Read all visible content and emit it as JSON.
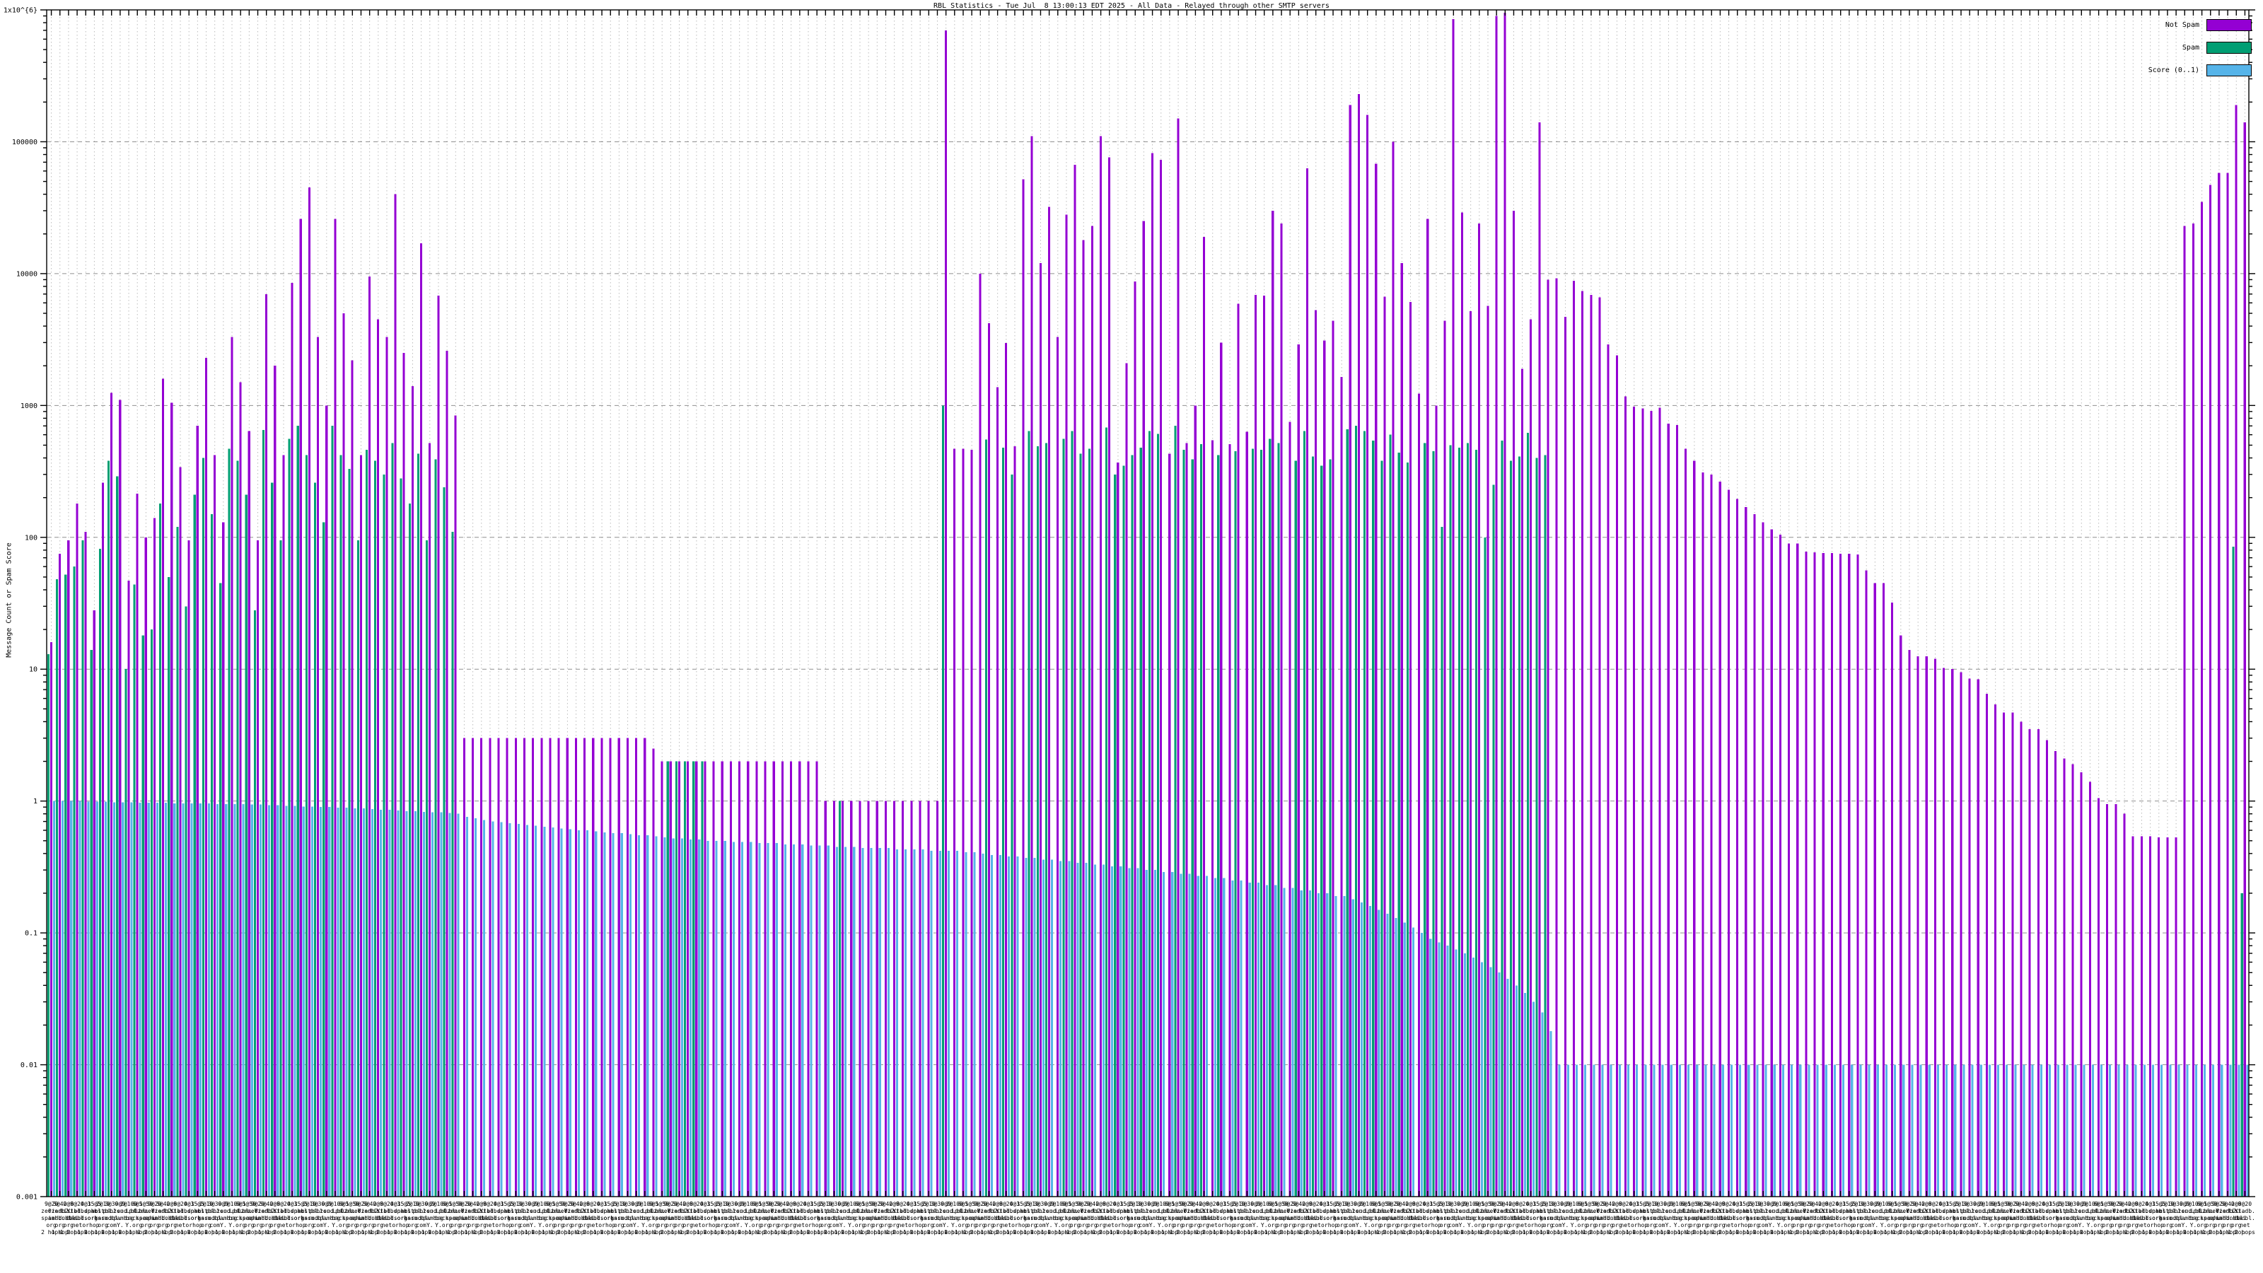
{
  "title": "RBL Statistics - Tue Jul  8 13:00:13 EDT 2025 - All Data - Relayed through other SMTP servers",
  "ylabel": "Message Count or Spam Score",
  "legend": [
    {
      "label": "Not Spam",
      "color": "#9400D3"
    },
    {
      "label": "Spam",
      "color": "#009E73"
    },
    {
      "label": "Score (0..1)",
      "color": "#56B4E9"
    }
  ],
  "colors": {
    "not_spam": "#9400D3",
    "spam": "#009E73",
    "score": "#56B4E9",
    "grid_major": "#909090",
    "grid_minor": "#bbbbbb",
    "axis": "#000000",
    "background": "#ffffff"
  },
  "y_ticks": [
    "1x10^{6}",
    "100000",
    "10000",
    "1000",
    "100",
    "10",
    "1",
    "0.1",
    "0.01",
    "0.001"
  ],
  "chart_data": {
    "type": "bar",
    "title": "RBL Statistics - Tue Jul  8 13:00:13 EDT 2025 - All Data - Relayed through other SMTP servers",
    "xlabel": "",
    "ylabel": "Message Count or Spam Score",
    "y_scale": "log",
    "ylim": [
      0.001,
      1000000
    ],
    "grid": true,
    "legend_position": "top-right",
    "series_names": [
      "Not Spam",
      "Spam",
      "Score (0..1)"
    ],
    "segments": [
      {
        "name": "left-mixed-small",
        "not_spam": [
          16,
          75,
          95,
          180,
          110,
          28,
          260,
          1250,
          1100,
          47,
          215,
          100,
          140,
          1600,
          1050,
          340,
          95,
          700,
          2300,
          420,
          130,
          3300,
          1500
        ],
        "spam": [
          13,
          48,
          52,
          60,
          95,
          14,
          82,
          380,
          290,
          10,
          44,
          18,
          20,
          180,
          50,
          120,
          30,
          210,
          400,
          150,
          45,
          470,
          380
        ],
        "score": [
          1.0,
          1.0,
          1.0,
          1.0,
          0.99,
          0.99,
          0.99,
          0.98,
          0.98,
          0.98,
          0.97,
          0.97,
          0.97,
          0.97,
          0.96,
          0.96,
          0.96,
          0.96,
          0.96,
          0.95,
          0.95,
          0.95,
          0.95
        ]
      },
      {
        "name": "left-mixed-large",
        "not_spam": [
          640,
          95,
          7000,
          2000,
          420,
          8500,
          26000,
          45000,
          3300,
          1000,
          26000,
          5000,
          2200,
          420,
          9500,
          4500,
          3300,
          40000,
          2500,
          1400,
          17000,
          520,
          6800,
          2600,
          840
        ],
        "spam": [
          210,
          28,
          650,
          260,
          95,
          560,
          700,
          420,
          260,
          130,
          700,
          420,
          330,
          95,
          460,
          380,
          300,
          520,
          280,
          180,
          430,
          95,
          390,
          240,
          110
        ],
        "score": [
          0.94,
          0.94,
          0.93,
          0.93,
          0.92,
          0.92,
          0.91,
          0.91,
          0.9,
          0.9,
          0.89,
          0.89,
          0.88,
          0.88,
          0.87,
          0.86,
          0.86,
          0.85,
          0.84,
          0.84,
          0.83,
          0.82,
          0.82,
          0.81,
          0.8
        ]
      },
      {
        "name": "plateau-3",
        "not_spam": [
          3,
          3,
          3,
          3,
          3,
          3,
          3,
          3,
          3,
          3,
          3,
          3,
          3,
          3,
          3,
          3,
          3,
          3,
          3,
          3,
          3,
          3,
          2.5
        ],
        "spam": {
          "v": 0,
          "n": 23
        },
        "score": [
          0.76,
          0.74,
          0.72,
          0.7,
          0.69,
          0.68,
          0.67,
          0.66,
          0.65,
          0.64,
          0.63,
          0.62,
          0.61,
          0.6,
          0.6,
          0.59,
          0.58,
          0.57,
          0.57,
          0.56,
          0.55,
          0.55,
          0.54
        ]
      },
      {
        "name": "plateau-2-with-green-patch",
        "not_spam": {
          "v": 2,
          "n": 19
        },
        "spam": [
          0,
          2,
          2,
          2,
          2,
          2,
          0,
          0,
          0,
          0,
          0,
          0,
          0,
          0,
          0,
          0,
          0,
          0,
          0
        ],
        "score": [
          0.53,
          0.52,
          0.52,
          0.51,
          0.51,
          0.5,
          0.5,
          0.5,
          0.49,
          0.49,
          0.49,
          0.48,
          0.48,
          0.48,
          0.47,
          0.47,
          0.47,
          0.46,
          0.46
        ]
      },
      {
        "name": "plateau-1",
        "not_spam": {
          "v": 1,
          "n": 14
        },
        "spam": [
          0,
          0,
          1,
          0,
          0,
          0,
          0,
          0,
          0,
          0,
          0,
          0,
          0,
          0
        ],
        "score": [
          0.46,
          0.45,
          0.45,
          0.45,
          0.44,
          0.44,
          0.44,
          0.44,
          0.43,
          0.43,
          0.43,
          0.43,
          0.42,
          0.42
        ]
      },
      {
        "name": "big-spike",
        "not_spam": [
          700000,
          470,
          470,
          460
        ],
        "spam": [
          1000,
          0,
          0,
          0
        ],
        "score": [
          0.42,
          0.42,
          0.41,
          0.41
        ]
      },
      {
        "name": "middle-busy",
        "not_spam": [
          10000,
          4200,
          1380,
          2970,
          490,
          52000,
          110000,
          12000,
          32000,
          3300,
          28000,
          67000,
          18000,
          23000,
          110000,
          76000,
          370,
          2100,
          8700,
          25000,
          82000,
          73000,
          430,
          150000,
          520,
          1000,
          19000,
          545,
          3000,
          510,
          5900,
          630,
          6900,
          6800,
          30000,
          24000,
          750,
          2900,
          63000,
          5300,
          3100,
          4400,
          1650,
          190000,
          230000,
          160000,
          68000,
          6700,
          100000,
          12000,
          6100,
          1230,
          26000
        ],
        "spam": [
          0,
          550,
          0,
          480,
          300,
          0,
          640,
          490,
          520,
          0,
          560,
          640,
          430,
          470,
          0,
          680,
          300,
          350,
          420,
          480,
          640,
          610,
          0,
          700,
          460,
          390,
          510,
          0,
          420,
          0,
          450,
          0,
          470,
          460,
          560,
          520,
          0,
          380,
          640,
          410,
          350,
          390,
          0,
          660,
          700,
          640,
          540,
          380,
          600,
          440,
          370,
          0,
          520
        ],
        "score": [
          0.4,
          0.39,
          0.39,
          0.38,
          0.38,
          0.37,
          0.37,
          0.36,
          0.36,
          0.35,
          0.35,
          0.34,
          0.34,
          0.33,
          0.33,
          0.32,
          0.32,
          0.31,
          0.31,
          0.3,
          0.3,
          0.29,
          0.29,
          0.28,
          0.28,
          0.27,
          0.27,
          0.26,
          0.26,
          0.25,
          0.25,
          0.24,
          0.24,
          0.23,
          0.23,
          0.22,
          0.22,
          0.21,
          0.21,
          0.2,
          0.2,
          0.19,
          0.19,
          0.18,
          0.17,
          0.16,
          0.15,
          0.14,
          0.13,
          0.12,
          0.11,
          0.1,
          0.09
        ]
      },
      {
        "name": "tall-spikes-and-score-drop",
        "not_spam": [
          1000,
          4400,
          850000,
          29000,
          5200,
          24000,
          5700,
          900000,
          950000,
          30000,
          1900,
          4500,
          140000,
          9000,
          9200,
          4700,
          8800,
          7400,
          6900
        ],
        "spam": [
          450,
          120,
          500,
          480,
          520,
          460,
          100,
          250,
          540,
          380,
          410,
          620,
          400,
          420,
          0,
          0,
          0,
          0,
          0
        ],
        "score": [
          0.085,
          0.08,
          0.075,
          0.07,
          0.065,
          0.06,
          0.055,
          0.05,
          0.045,
          0.04,
          0.035,
          0.03,
          0.025,
          0.018,
          0.01,
          0.01,
          0.01,
          0.01,
          0.01
        ]
      },
      {
        "name": "staircase-decline-upper",
        "not_spam": [
          6600,
          2900,
          2400,
          1170,
          980,
          950,
          910,
          960,
          730,
          710,
          470,
          380,
          310,
          300,
          265,
          230,
          195,
          170,
          150,
          130,
          115,
          105,
          90,
          90,
          78,
          77,
          76,
          76,
          75,
          75,
          74,
          56,
          45,
          45,
          32,
          18,
          14,
          12.5,
          12.5
        ],
        "spam": {
          "v": 0,
          "n": 39
        },
        "score": {
          "v": 0.01,
          "n": 39
        }
      },
      {
        "name": "staircase-decline-lower",
        "not_spam": [
          12,
          10.2,
          10,
          9.5,
          8.5,
          8.4,
          6.5,
          5.4,
          4.7,
          4.7,
          4.0,
          3.5,
          3.5,
          2.9,
          2.4,
          2.1,
          1.9,
          1.65,
          1.4,
          1.05,
          0.95,
          0.95,
          0.8,
          0.54,
          0.54,
          0.54,
          0.53,
          0.53,
          0.53
        ],
        "spam": {
          "v": 0,
          "n": 29
        },
        "score": {
          "v": 0.01,
          "n": 29
        }
      },
      {
        "name": "right-edge-spike",
        "not_spam": [
          23000,
          24000,
          35000,
          47000,
          58000,
          58000,
          190000,
          140000
        ],
        "spam": [
          0,
          0,
          0,
          0,
          0,
          0,
          85,
          0.2
        ],
        "score": {
          "v": 0.01,
          "n": 8
        }
      }
    ],
    "x_label_pool": [
      [
        "9@20",
        "zerzen",
        "spamh.",
        "org",
        "2 hops"
      ],
      [
        "5@40",
        "0iadb2.",
        "iadb.bl",
        "org",
        "1 hop"
      ],
      [
        "2@9",
        "list.",
        "dnsbl.",
        "org",
        "1 hop"
      ],
      [
        "8@20",
        "Yiadb.",
        "badbl.",
        "net",
        "2 hops"
      ],
      [
        "4@3",
        "bl.spam",
        "sud.org",
        "or",
        "1 hop"
      ],
      [
        "15@5",
        "dnsbl.",
        "sorbs.",
        "hop",
        "2 hops"
      ],
      [
        "2@10",
        "hostbl.",
        "karm.",
        "org",
        "1 hop"
      ],
      [
        "3@30",
        "psbl.",
        "sudbl.",
        "com",
        "2 hops"
      ],
      [
        "9@9",
        "zen.",
        "spamh.",
        "Y.",
        "1 hop"
      ],
      [
        "2@100",
        "sud.bl.",
        "org",
        "Y.",
        "2 hops"
      ],
      [
        "6@5",
        "ips.bl.",
        "backsc.",
        "org",
        "1 hop"
      ],
      [
        "1@50",
        "0zen.Y.",
        "spamh.",
        "org",
        "1 hop"
      ]
    ]
  }
}
